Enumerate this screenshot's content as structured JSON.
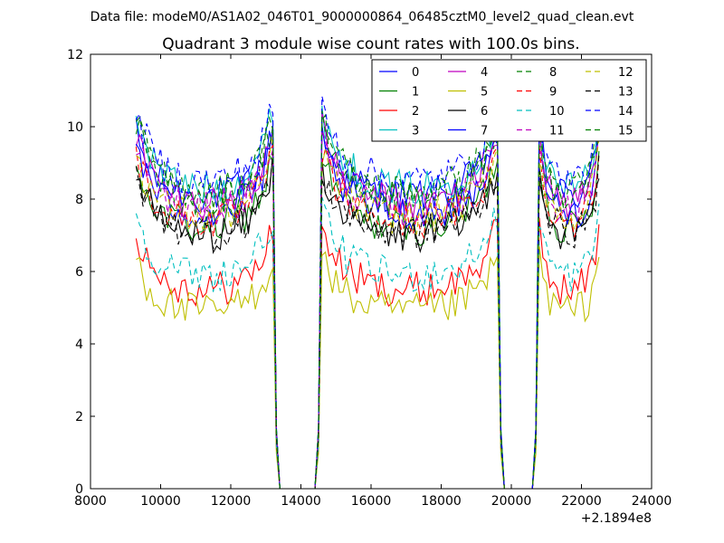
{
  "figure": {
    "suptitle": "Data file: modeM0/AS1A02_046T01_9000000864_06485cztM0_level2_quad_clean.evt"
  },
  "chart_data": {
    "type": "line",
    "title": "Quadrant 3 module wise count rates with 100.0s bins.",
    "xlabel": "",
    "ylabel": "",
    "x_offset_label": "+2.1894e8",
    "xlim": [
      8000,
      24000
    ],
    "ylim": [
      0,
      12
    ],
    "xticks": [
      8000,
      10000,
      12000,
      14000,
      16000,
      18000,
      20000,
      22000,
      24000
    ],
    "yticks": [
      0,
      2,
      4,
      6,
      8,
      10,
      12
    ],
    "grid": false,
    "legend_position": "top-right",
    "legend_columns": 4,
    "segments": [
      {
        "start": 9300,
        "end": 13200
      },
      {
        "start": 14600,
        "end": 19600
      },
      {
        "start": 20800,
        "end": 22500
      }
    ],
    "gaps": [
      {
        "start": 13500,
        "end": 14500
      },
      {
        "start": 19800,
        "end": 20700
      }
    ],
    "series": [
      {
        "name": "0",
        "color": "#0000ff",
        "dash": "solid",
        "level": 8.1,
        "edge_peak": 9.8
      },
      {
        "name": "1",
        "color": "#008000",
        "dash": "solid",
        "level": 7.2,
        "edge_peak": 9.2
      },
      {
        "name": "2",
        "color": "#ff0000",
        "dash": "solid",
        "level": 5.5,
        "edge_peak": 7.2
      },
      {
        "name": "3",
        "color": "#00bfbf",
        "dash": "solid",
        "level": 8.3,
        "edge_peak": 10.5
      },
      {
        "name": "4",
        "color": "#bf00bf",
        "dash": "solid",
        "level": 7.9,
        "edge_peak": 9.9
      },
      {
        "name": "5",
        "color": "#bfbf00",
        "dash": "solid",
        "level": 4.9,
        "edge_peak": 6.4
      },
      {
        "name": "6",
        "color": "#000000",
        "dash": "solid",
        "level": 7.0,
        "edge_peak": 8.9
      },
      {
        "name": "7",
        "color": "#0000ff",
        "dash": "solid",
        "level": 7.6,
        "edge_peak": 9.6
      },
      {
        "name": "8",
        "color": "#008000",
        "dash": "dashed",
        "level": 8.0,
        "edge_peak": 10.2
      },
      {
        "name": "9",
        "color": "#ff0000",
        "dash": "dashed",
        "level": 7.4,
        "edge_peak": 9.3
      },
      {
        "name": "10",
        "color": "#00bfbf",
        "dash": "dashed",
        "level": 5.9,
        "edge_peak": 7.6
      },
      {
        "name": "11",
        "color": "#bf00bf",
        "dash": "dashed",
        "level": 7.7,
        "edge_peak": 9.7
      },
      {
        "name": "12",
        "color": "#bfbf00",
        "dash": "dashed",
        "level": 7.5,
        "edge_peak": 9.4
      },
      {
        "name": "13",
        "color": "#000000",
        "dash": "dashed",
        "level": 7.1,
        "edge_peak": 8.8
      },
      {
        "name": "14",
        "color": "#0000ff",
        "dash": "dashed",
        "level": 8.5,
        "edge_peak": 10.6
      },
      {
        "name": "15",
        "color": "#008000",
        "dash": "dashed",
        "level": 8.2,
        "edge_peak": 10.3
      }
    ]
  }
}
